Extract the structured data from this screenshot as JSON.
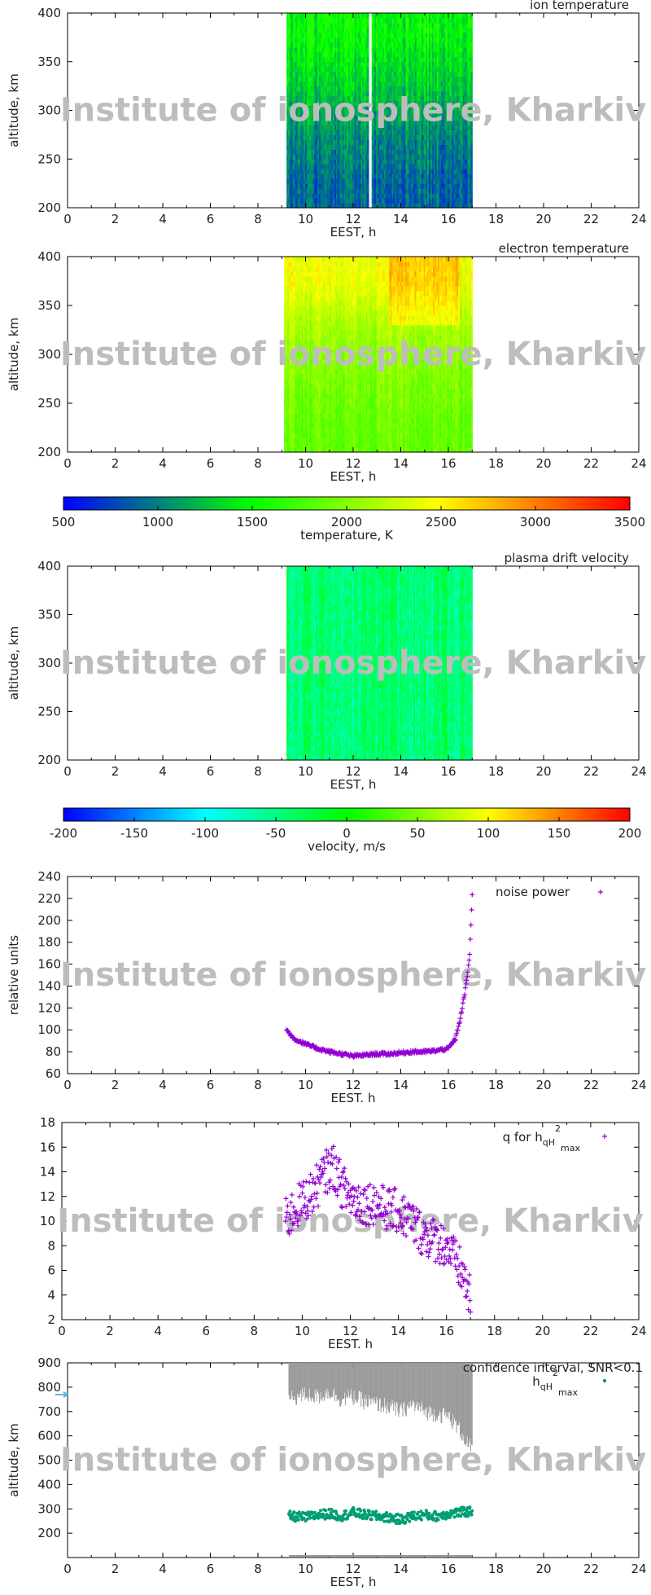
{
  "watermark": "Institute of ionosphere, Kharkiv",
  "colors": {
    "temperature_scale": [
      "#0000ff",
      "#00ff00",
      "#ffff00",
      "#ff0000"
    ],
    "velocity_scale": [
      "#0000ff",
      "#00ffff",
      "#00ff00",
      "#ffff00",
      "#ff0000"
    ],
    "scatter_purple": "#9400d3",
    "peak_green": "#009e73",
    "confidence_gray": "#999999",
    "marker_blue": "#56b4e9"
  },
  "chart_data": [
    {
      "id": "ion-temperature",
      "type": "heatmap",
      "title": "ion temperature",
      "xlabel": "EEST, h",
      "ylabel": "altitude, km",
      "xlim": [
        0,
        24
      ],
      "ylim": [
        200,
        400
      ],
      "xticks": [
        "0",
        "2",
        "4",
        "6",
        "8",
        "10",
        "12",
        "14",
        "16",
        "18",
        "20",
        "22",
        "24"
      ],
      "yticks": [
        "200",
        "250",
        "300",
        "350",
        "400"
      ],
      "data_span_hours": [
        9.2,
        17.0
      ],
      "gap_hours": [
        12.65,
        12.75
      ],
      "value_range_K": [
        700,
        1900
      ],
      "bands_by_altitude": [
        {
          "altitude": [
            200,
            250
          ],
          "mean_K": 900
        },
        {
          "altitude": [
            250,
            300
          ],
          "mean_K": 1050
        },
        {
          "altitude": [
            300,
            350
          ],
          "mean_K": 1300
        },
        {
          "altitude": [
            350,
            400
          ],
          "mean_K": 1500
        }
      ]
    },
    {
      "id": "electron-temperature",
      "type": "heatmap",
      "title": "electron temperature",
      "xlabel": "EEST, h",
      "ylabel": "altitude, km",
      "xlim": [
        0,
        24
      ],
      "ylim": [
        200,
        400
      ],
      "xticks": [
        "0",
        "2",
        "4",
        "6",
        "8",
        "10",
        "12",
        "14",
        "16",
        "18",
        "20",
        "22",
        "24"
      ],
      "yticks": [
        "200",
        "250",
        "300",
        "350",
        "400"
      ],
      "data_span_hours": [
        9.1,
        17.0
      ],
      "value_range_K": [
        1700,
        2900
      ],
      "bands_by_altitude": [
        {
          "altitude": [
            200,
            250
          ],
          "mean_K": 1900
        },
        {
          "altitude": [
            250,
            300
          ],
          "mean_K": 2000
        },
        {
          "altitude": [
            300,
            350
          ],
          "mean_K": 2150
        },
        {
          "altitude": [
            350,
            400
          ],
          "mean_K": 2450
        }
      ]
    },
    {
      "id": "temperature-colorbar",
      "type": "colorbar",
      "label": "temperature, K",
      "range": [
        500,
        3500
      ],
      "ticks": [
        "500",
        "1000",
        "1500",
        "2000",
        "2500",
        "3000",
        "3500"
      ]
    },
    {
      "id": "plasma-drift-velocity",
      "type": "heatmap",
      "title": "plasma drift velocity",
      "xlabel": "EEST, h",
      "ylabel": "altitude, km",
      "xlim": [
        0,
        24
      ],
      "ylim": [
        200,
        400
      ],
      "xticks": [
        "0",
        "2",
        "4",
        "6",
        "8",
        "10",
        "12",
        "14",
        "16",
        "18",
        "20",
        "22",
        "24"
      ],
      "yticks": [
        "200",
        "250",
        "300",
        "350",
        "400"
      ],
      "data_span_hours": [
        9.2,
        17.0
      ],
      "value_range_m_s": [
        -80,
        -10
      ]
    },
    {
      "id": "velocity-colorbar",
      "type": "colorbar",
      "label": "velocity, m/s",
      "range": [
        -200,
        200
      ],
      "ticks": [
        "-200",
        "-150",
        "-100",
        "-50",
        "0",
        "50",
        "100",
        "150",
        "200"
      ]
    },
    {
      "id": "noise-power",
      "type": "scatter",
      "legend": "noise power",
      "xlabel": "EEST. h",
      "ylabel": "relative units",
      "xlim": [
        0,
        24
      ],
      "ylim": [
        60,
        240
      ],
      "xticks": [
        "0",
        "2",
        "4",
        "6",
        "8",
        "10",
        "12",
        "14",
        "16",
        "18",
        "20",
        "22",
        "24"
      ],
      "yticks": [
        "60",
        "80",
        "100",
        "120",
        "140",
        "160",
        "180",
        "200",
        "220",
        "240"
      ],
      "series": [
        {
          "name": "noise power",
          "x": [
            9.2,
            9.5,
            10,
            10.5,
            11,
            11.5,
            12,
            12.5,
            13,
            13.5,
            14,
            14.5,
            15,
            15.5,
            16,
            16.3,
            16.5,
            16.7,
            16.8,
            16.9,
            17.0
          ],
          "y": [
            100,
            92,
            87,
            83,
            80,
            78,
            76,
            77,
            78,
            78,
            79,
            80,
            80,
            81,
            83,
            92,
            110,
            135,
            150,
            170,
            224
          ]
        }
      ]
    },
    {
      "id": "q-for-hmax",
      "type": "scatter",
      "legend": {
        "prefix": "q for h",
        "sub": "qH",
        "sup": "2",
        "sub2": "max"
      },
      "xlabel": "EEST. h",
      "ylabel": "",
      "xlim": [
        0,
        24
      ],
      "ylim": [
        2,
        18
      ],
      "xticks": [
        "0",
        "2",
        "4",
        "6",
        "8",
        "10",
        "12",
        "14",
        "16",
        "18",
        "20",
        "22",
        "24"
      ],
      "yticks": [
        "2",
        "4",
        "6",
        "8",
        "10",
        "12",
        "14",
        "16",
        "18"
      ],
      "series": [
        {
          "name": "q",
          "x": [
            9.3,
            9.7,
            10,
            10.5,
            11,
            11.3,
            11.6,
            12,
            12.5,
            13,
            13.5,
            14,
            14.5,
            15,
            15.5,
            16,
            16.3,
            16.6,
            16.8,
            17.0
          ],
          "y": [
            10,
            11,
            11.5,
            12.5,
            14,
            14.5,
            13,
            12,
            11.5,
            11.5,
            11,
            10.8,
            10,
            9,
            8.5,
            8,
            7,
            6,
            5,
            3.5
          ]
        }
      ]
    },
    {
      "id": "hmax-confidence",
      "type": "scatter",
      "title": "confidence interval, SNR<0.1",
      "legend": {
        "prefix": "h",
        "sub": "qH",
        "sup": "2",
        "sub2": "max"
      },
      "xlabel": "EEST, h",
      "ylabel": "altitude, km",
      "xlim": [
        0,
        24
      ],
      "ylim": [
        100,
        900
      ],
      "xticks": [
        "0",
        "2",
        "4",
        "6",
        "8",
        "10",
        "12",
        "14",
        "16",
        "18",
        "20",
        "22",
        "24"
      ],
      "yticks": [
        "200",
        "300",
        "400",
        "500",
        "600",
        "700",
        "800",
        "900"
      ],
      "series": [
        {
          "name": "h",
          "x": [
            9.3,
            10,
            10.5,
            11,
            11.5,
            12,
            12.5,
            13,
            13.5,
            14,
            14.5,
            15,
            15.5,
            16,
            16.5,
            17.0
          ],
          "y": [
            270,
            265,
            275,
            280,
            270,
            285,
            275,
            270,
            265,
            255,
            270,
            275,
            270,
            280,
            285,
            290
          ]
        },
        {
          "name": "confidence upper",
          "x": [
            9.3,
            10,
            10.5,
            11,
            11.5,
            12,
            12.5,
            13,
            13.5,
            14,
            14.5,
            15,
            15.5,
            16,
            16.5,
            17.0
          ],
          "y": [
            900,
            900,
            900,
            900,
            900,
            900,
            900,
            900,
            900,
            900,
            900,
            900,
            900,
            900,
            900,
            900
          ]
        },
        {
          "name": "confidence lower",
          "x": [
            9.3,
            10,
            10.5,
            11,
            11.5,
            12,
            12.5,
            13,
            13.5,
            14,
            14.5,
            15,
            15.5,
            16,
            16.5,
            17.0
          ],
          "y": [
            750,
            770,
            760,
            780,
            750,
            760,
            740,
            730,
            720,
            700,
            730,
            700,
            690,
            680,
            620,
            540
          ]
        }
      ]
    }
  ]
}
